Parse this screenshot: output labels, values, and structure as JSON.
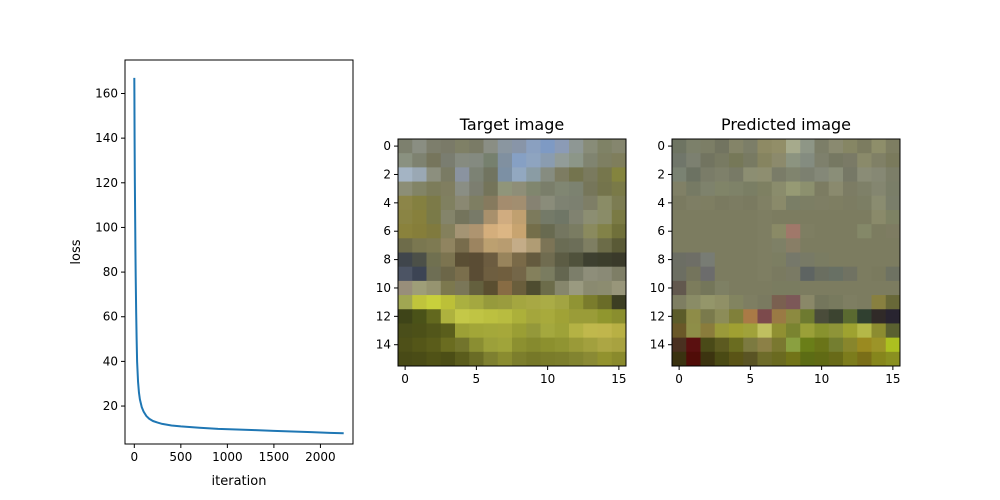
{
  "chart_data": [
    {
      "type": "line",
      "title": "",
      "xlabel": "iteration",
      "ylabel": "loss",
      "xlim": [
        -100,
        2350
      ],
      "ylim": [
        3,
        175
      ],
      "xticks": [
        0,
        500,
        1000,
        1500,
        2000
      ],
      "yticks": [
        20,
        40,
        60,
        80,
        100,
        120,
        140,
        160
      ],
      "grid": false,
      "series": [
        {
          "color": "#1f77b4",
          "x": [
            0,
            1,
            2,
            3,
            4,
            5,
            6,
            8,
            10,
            12,
            15,
            20,
            25,
            30,
            40,
            50,
            60,
            80,
            100,
            130,
            160,
            200,
            250,
            300,
            400,
            500,
            700,
            900,
            1100,
            1300,
            1500,
            1700,
            1900,
            2100,
            2250
          ],
          "y": [
            167,
            160,
            150,
            140,
            133,
            126,
            120,
            110,
            100,
            90,
            78,
            62,
            50,
            40,
            31,
            26,
            23,
            19.5,
            17.5,
            15.5,
            14.3,
            13.3,
            12.6,
            12.0,
            11.3,
            10.9,
            10.3,
            9.8,
            9.5,
            9.2,
            8.9,
            8.6,
            8.3,
            8.0,
            7.8
          ]
        }
      ]
    },
    {
      "type": "heatmap",
      "title": "Target image",
      "xticks": [
        0,
        5,
        10,
        15
      ],
      "yticks": [
        0,
        2,
        4,
        6,
        8,
        10,
        12,
        14
      ],
      "pixels": [
        [
          "#7d806e",
          "#8a8e82",
          "#7d7e6c",
          "#7a7a68",
          "#7f8066",
          "#7a7b66",
          "#8a8e84",
          "#8a96a0",
          "#8895a8",
          "#8aa0c0",
          "#7e9ac4",
          "#8b9bb6",
          "#8e9794",
          "#888c78",
          "#7f8266",
          "#85866e"
        ],
        [
          "#8a9180",
          "#7e8270",
          "#76755c",
          "#7a7d70",
          "#868b80",
          "#848a80",
          "#76806e",
          "#8090a0",
          "#86a0c4",
          "#8ea4c0",
          "#8a9cb0",
          "#929c98",
          "#8c9688",
          "#808470",
          "#7e7f62",
          "#7f7e5c"
        ],
        [
          "#a4b4c4",
          "#9aa8b4",
          "#8c8f7e",
          "#7a7b64",
          "#8a93a0",
          "#7c8274",
          "#717460",
          "#7c90a4",
          "#92a8c0",
          "#8a9ca4",
          "#868c80",
          "#7d7c62",
          "#74744e",
          "#7a7a5e",
          "#76764c",
          "#84843e"
        ],
        [
          "#8c8e76",
          "#828466",
          "#7c7c5a",
          "#807e60",
          "#8a8e84",
          "#7c7e70",
          "#74745a",
          "#90957a",
          "#8e8e78",
          "#80866e",
          "#7a7e6a",
          "#808672",
          "#7c8270",
          "#76765a",
          "#74744c",
          "#7a7a48"
        ],
        [
          "#8c8548",
          "#848040",
          "#7c7a48",
          "#808060",
          "#8a8872",
          "#7e7e62",
          "#867a5e",
          "#a48c6e",
          "#a28e70",
          "#868272",
          "#8a8c7a",
          "#7e8272",
          "#7c8070",
          "#7e7e66",
          "#8a8c66",
          "#7c7c52"
        ],
        [
          "#8a8444",
          "#87803c",
          "#7a7a48",
          "#84846a",
          "#74745c",
          "#787a68",
          "#a8906c",
          "#d0ac80",
          "#c0a070",
          "#7c7a5c",
          "#747a68",
          "#6f7666",
          "#808270",
          "#8c8e72",
          "#8a8c68",
          "#7a7a44"
        ],
        [
          "#8a823c",
          "#867e3a",
          "#807a3e",
          "#84805c",
          "#a49474",
          "#ae9470",
          "#d4ae7c",
          "#dcb684",
          "#c8a470",
          "#746e4a",
          "#686a50",
          "#747660",
          "#7a7c62",
          "#8a8a5e",
          "#828248",
          "#70703a"
        ],
        [
          "#6e6c4a",
          "#7a7750",
          "#7e7a52",
          "#908460",
          "#786c4c",
          "#9c8460",
          "#bca070",
          "#b89c70",
          "#c4ac88",
          "#b09c74",
          "#7c7456",
          "#6a6c54",
          "#6c6e58",
          "#7e7e62",
          "#6c6c48",
          "#5a5a36"
        ],
        [
          "#40464c",
          "#4c5048",
          "#707050",
          "#7c7450",
          "#5a4e34",
          "#5a4c34",
          "#6c5c40",
          "#98845c",
          "#7a6a48",
          "#645a3e",
          "#706c50",
          "#5c5c44",
          "#50523c",
          "#3e4030",
          "#3c3e2c",
          "#3a3a2a"
        ],
        [
          "#4c5464",
          "#3c4454",
          "#6e6e54",
          "#6c6648",
          "#7a6e4c",
          "#5a4c34",
          "#6e5e40",
          "#705e3e",
          "#746648",
          "#84805c",
          "#7a7c60",
          "#646650",
          "#7c7e6a",
          "#8e8e7a",
          "#8a8a76",
          "#7e7e66"
        ],
        [
          "#988e7a",
          "#9e9e78",
          "#969470",
          "#7c784e",
          "#7a7658",
          "#64603e",
          "#5a4e30",
          "#886c44",
          "#6a5e3c",
          "#4e4c30",
          "#6c6c4a",
          "#86866c",
          "#9a9a80",
          "#8a8a70",
          "#8c8c70",
          "#98967a"
        ],
        [
          "#a0a652",
          "#c0c43c",
          "#c8d03c",
          "#bcc038",
          "#aab040",
          "#a4a840",
          "#969a3c",
          "#9a9c3e",
          "#a4a640",
          "#a8a844",
          "#aaac46",
          "#a2a442",
          "#909434",
          "#7a7c2c",
          "#6a6c28",
          "#3c3e22"
        ],
        [
          "#3e4418",
          "#4a5218",
          "#62681e",
          "#aeb23e",
          "#c4c848",
          "#c0c444",
          "#bcc040",
          "#b8bc40",
          "#acb03a",
          "#a4a63c",
          "#a8aa3c",
          "#a0a236",
          "#9a9c38",
          "#9a9c38",
          "#90962e",
          "#8a8e2e"
        ],
        [
          "#4a4e1a",
          "#4c5018",
          "#52561a",
          "#5a5e1c",
          "#9ca036",
          "#a2a638",
          "#a4a83a",
          "#a6a83a",
          "#9a9e34",
          "#94983a",
          "#a4a83e",
          "#9ea238",
          "#b4b244",
          "#c0b84c",
          "#c0b64c",
          "#b8b044"
        ],
        [
          "#4e5018",
          "#545618",
          "#5a5c1a",
          "#6a6c20",
          "#72742c",
          "#8a8e32",
          "#9ca03a",
          "#a0a43a",
          "#8c9030",
          "#868a2e",
          "#8c902e",
          "#909432",
          "#9a9a38",
          "#a2a03e",
          "#aca644",
          "#a8a240"
        ],
        [
          "#484a16",
          "#4a4c16",
          "#505216",
          "#4c4e16",
          "#5a5c1c",
          "#6a6c26",
          "#7e8030",
          "#8a8c30",
          "#7c7e2c",
          "#767828",
          "#7a7c2a",
          "#7c7e2c",
          "#828430",
          "#8a8a34",
          "#92922e",
          "#8a8a2c"
        ]
      ]
    },
    {
      "type": "heatmap",
      "title": "Predicted image",
      "xticks": [
        0,
        5,
        10,
        15
      ],
      "yticks": [
        0,
        2,
        4,
        6,
        8,
        10,
        12,
        14
      ],
      "pixels": [
        [
          "#6e7462",
          "#7c806a",
          "#7c7e66",
          "#727460",
          "#848468",
          "#7c7e68",
          "#8e8a64",
          "#928e68",
          "#a6aa8c",
          "#8e9686",
          "#7c7e68",
          "#8a8a70",
          "#868664",
          "#7c7c60",
          "#8e8e6a",
          "#7e7e62"
        ],
        [
          "#70766a",
          "#7c8070",
          "#727460",
          "#787a62",
          "#767858",
          "#787a62",
          "#868460",
          "#8c8a6c",
          "#8c9480",
          "#848c80",
          "#7e806c",
          "#767862",
          "#7a7a66",
          "#8a8a6a",
          "#808066",
          "#7a7a5c"
        ],
        [
          "#7a8272",
          "#6c7262",
          "#7a7c68",
          "#7e806a",
          "#787a66",
          "#8c8e72",
          "#8e8e70",
          "#7a7c68",
          "#80846e",
          "#7c8070",
          "#848878",
          "#8a8e78",
          "#767866",
          "#8a8c76",
          "#868874",
          "#7c7e68"
        ],
        [
          "#808066",
          "#767a64",
          "#7e826c",
          "#808468",
          "#7e8268",
          "#7a7e64",
          "#7e8062",
          "#8a8c6c",
          "#969a74",
          "#8c906e",
          "#7c7c62",
          "#8a8a6e",
          "#7c7c64",
          "#7e8068",
          "#848670",
          "#7a7e68"
        ],
        [
          "#7a7a60",
          "#7e7e64",
          "#7e7e62",
          "#7a7a60",
          "#7c7c62",
          "#7a7a60",
          "#808064",
          "#8a8a6a",
          "#7a7e66",
          "#7c7e64",
          "#7e7e64",
          "#7e7e62",
          "#7c7c62",
          "#7c7e64",
          "#8a8c70",
          "#7a7e6a"
        ],
        [
          "#7c7c60",
          "#7c7c60",
          "#7c7c60",
          "#7c7c60",
          "#7c7c60",
          "#7c7c60",
          "#7e7e62",
          "#7c7c60",
          "#7c7c60",
          "#7c7c60",
          "#7c7c60",
          "#7c7c60",
          "#7c7c60",
          "#7c7c60",
          "#8a8a6a",
          "#7e8264"
        ],
        [
          "#7c7c60",
          "#7c7c60",
          "#7c7c60",
          "#7c7c60",
          "#7c7c60",
          "#7c7c60",
          "#7e7e62",
          "#8a8a66",
          "#a0786a",
          "#7e7e62",
          "#7c7c60",
          "#7c7c60",
          "#7c7c60",
          "#848868",
          "#7c7c60",
          "#7e7c62"
        ],
        [
          "#7c7c60",
          "#7c7c60",
          "#7c7c60",
          "#7c7c60",
          "#7c7c60",
          "#7c7c60",
          "#7e7e62",
          "#7e8066",
          "#887e66",
          "#7c7c60",
          "#7c7c60",
          "#7c7c60",
          "#7c7c60",
          "#7c7c60",
          "#7c7c60",
          "#7c7c60"
        ],
        [
          "#6c6e64",
          "#6e6e66",
          "#787c74",
          "#7c7c60",
          "#7c7c60",
          "#7c7c60",
          "#7e7e62",
          "#7c7e62",
          "#76786a",
          "#787a66",
          "#7a7c62",
          "#7c7c60",
          "#7c7c60",
          "#7c7c60",
          "#7c7c60",
          "#7c7c60"
        ],
        [
          "#6c6e62",
          "#74745c",
          "#6c6c6c",
          "#7c7c60",
          "#7c7c60",
          "#7c7c60",
          "#7e7e62",
          "#7a7a60",
          "#7a7a64",
          "#5e6462",
          "#6a6e60",
          "#687064",
          "#707262",
          "#7c7c60",
          "#7a7a5e",
          "#6e7262"
        ],
        [
          "#62584e",
          "#7c7c5c",
          "#74765a",
          "#7e8064",
          "#7c7c60",
          "#7c7c60",
          "#7c7c60",
          "#7a7c60",
          "#7a7c60",
          "#7c7c60",
          "#7c7c60",
          "#7c7c60",
          "#7c7c60",
          "#7c7c60",
          "#7c7c60",
          "#7c7c60"
        ],
        [
          "#7e7e62",
          "#8a8c66",
          "#94966a",
          "#909066",
          "#828460",
          "#7e7e62",
          "#7a7a60",
          "#7a6050",
          "#7c5858",
          "#8a8868",
          "#74765c",
          "#787a5e",
          "#7e7e62",
          "#7c7c60",
          "#888040",
          "#686838"
        ],
        [
          "#5c5c2a",
          "#8e8c48",
          "#7a7a4c",
          "#8c8c58",
          "#80803a",
          "#aa7a46",
          "#7c4a4c",
          "#9a7a44",
          "#8c8a40",
          "#6e7a30",
          "#4a4c3a",
          "#3c4430",
          "#5a6a30",
          "#304030",
          "#302a28",
          "#282430"
        ],
        [
          "#6a5828",
          "#8e8e48",
          "#8a7c3c",
          "#9a9a3a",
          "#a0a032",
          "#a0a23a",
          "#c0c060",
          "#909032",
          "#7a8430",
          "#9aa038",
          "#88922e",
          "#8e9438",
          "#9ea230",
          "#b4b848",
          "#8c8c30",
          "#5a6030"
        ],
        [
          "#4a3020",
          "#5a1010",
          "#4a4a18",
          "#5c5a20",
          "#6a6c20",
          "#7c7a40",
          "#8c8046",
          "#7a7830",
          "#8aa040",
          "#6a7e18",
          "#6a7418",
          "#747e30",
          "#88862c",
          "#9a8a20",
          "#9c9428",
          "#acc020"
        ],
        [
          "#3a3210",
          "#500c08",
          "#3c3410",
          "#4a4a14",
          "#5a5416",
          "#5a5424",
          "#6e6c2a",
          "#6a6a20",
          "#727418",
          "#5c6c14",
          "#606a14",
          "#686a18",
          "#7c7c1c",
          "#7a6e18",
          "#86861c",
          "#8a9020"
        ]
      ]
    }
  ]
}
